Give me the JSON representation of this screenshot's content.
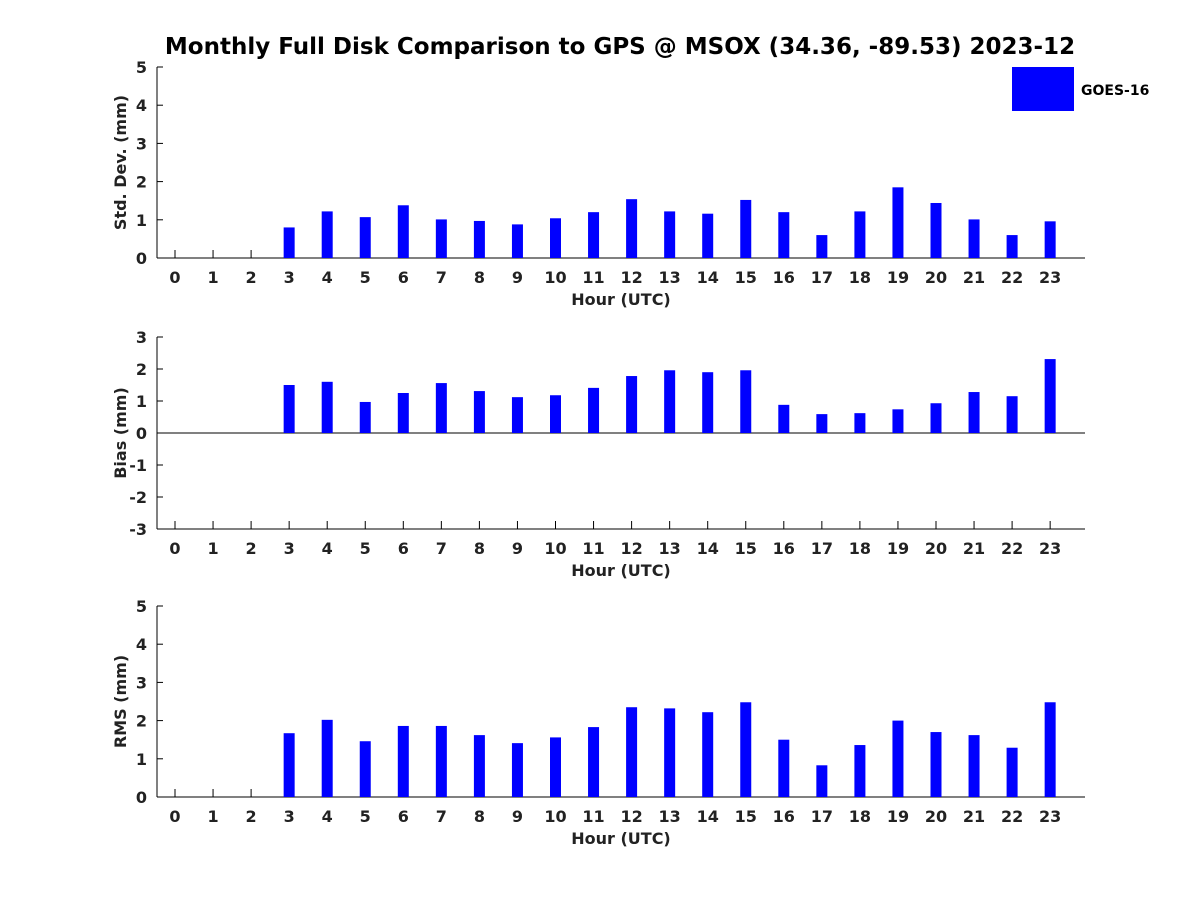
{
  "title": "Monthly Full Disk Comparison to GPS @ MSOX (34.36, -89.53) 2023-12",
  "legend": {
    "label": "GOES-16",
    "color": "#0000ff",
    "placement": "top-right"
  },
  "bar_color": "#0000ff",
  "chart_data": [
    {
      "type": "bar",
      "key": "std",
      "xlabel": "Hour (UTC)",
      "ylabel": "Std. Dev. (mm)",
      "ylim": [
        0,
        5
      ],
      "yticks": [
        "0",
        "1",
        "2",
        "3",
        "4",
        "5"
      ],
      "categories": [
        "0",
        "1",
        "2",
        "3",
        "4",
        "5",
        "6",
        "7",
        "8",
        "9",
        "10",
        "11",
        "12",
        "13",
        "14",
        "15",
        "16",
        "17",
        "18",
        "19",
        "20",
        "21",
        "22",
        "23"
      ],
      "series": [
        {
          "name": "GOES-16",
          "values": [
            null,
            null,
            null,
            0.8,
            1.22,
            1.07,
            1.38,
            1.01,
            0.97,
            0.88,
            1.04,
            1.2,
            1.54,
            1.22,
            1.16,
            1.52,
            1.2,
            0.6,
            1.22,
            1.85,
            1.44,
            1.01,
            0.6,
            0.96
          ]
        }
      ],
      "grid": false
    },
    {
      "type": "bar",
      "key": "bias",
      "xlabel": "Hour (UTC)",
      "ylabel": "Bias (mm)",
      "ylim": [
        -3,
        3
      ],
      "yticks": [
        "-3",
        "-2",
        "-1",
        "0",
        "1",
        "2",
        "3"
      ],
      "categories": [
        "0",
        "1",
        "2",
        "3",
        "4",
        "5",
        "6",
        "7",
        "8",
        "9",
        "10",
        "11",
        "12",
        "13",
        "14",
        "15",
        "16",
        "17",
        "18",
        "19",
        "20",
        "21",
        "22",
        "23"
      ],
      "series": [
        {
          "name": "GOES-16",
          "values": [
            null,
            null,
            null,
            1.5,
            1.6,
            0.97,
            1.25,
            1.56,
            1.31,
            1.12,
            1.18,
            1.41,
            1.78,
            1.96,
            1.9,
            1.96,
            0.88,
            0.59,
            0.62,
            0.74,
            0.93,
            1.28,
            1.15,
            2.31
          ]
        }
      ],
      "grid": false
    },
    {
      "type": "bar",
      "key": "rms",
      "xlabel": "Hour (UTC)",
      "ylabel": "RMS (mm)",
      "ylim": [
        0,
        5
      ],
      "yticks": [
        "0",
        "1",
        "2",
        "3",
        "4",
        "5"
      ],
      "categories": [
        "0",
        "1",
        "2",
        "3",
        "4",
        "5",
        "6",
        "7",
        "8",
        "9",
        "10",
        "11",
        "12",
        "13",
        "14",
        "15",
        "16",
        "17",
        "18",
        "19",
        "20",
        "21",
        "22",
        "23"
      ],
      "series": [
        {
          "name": "GOES-16",
          "values": [
            null,
            null,
            null,
            1.67,
            2.02,
            1.46,
            1.86,
            1.86,
            1.62,
            1.41,
            1.56,
            1.83,
            2.35,
            2.32,
            2.22,
            2.48,
            1.5,
            0.83,
            1.36,
            2.0,
            1.7,
            1.62,
            1.29,
            2.48
          ]
        }
      ],
      "grid": false
    }
  ]
}
